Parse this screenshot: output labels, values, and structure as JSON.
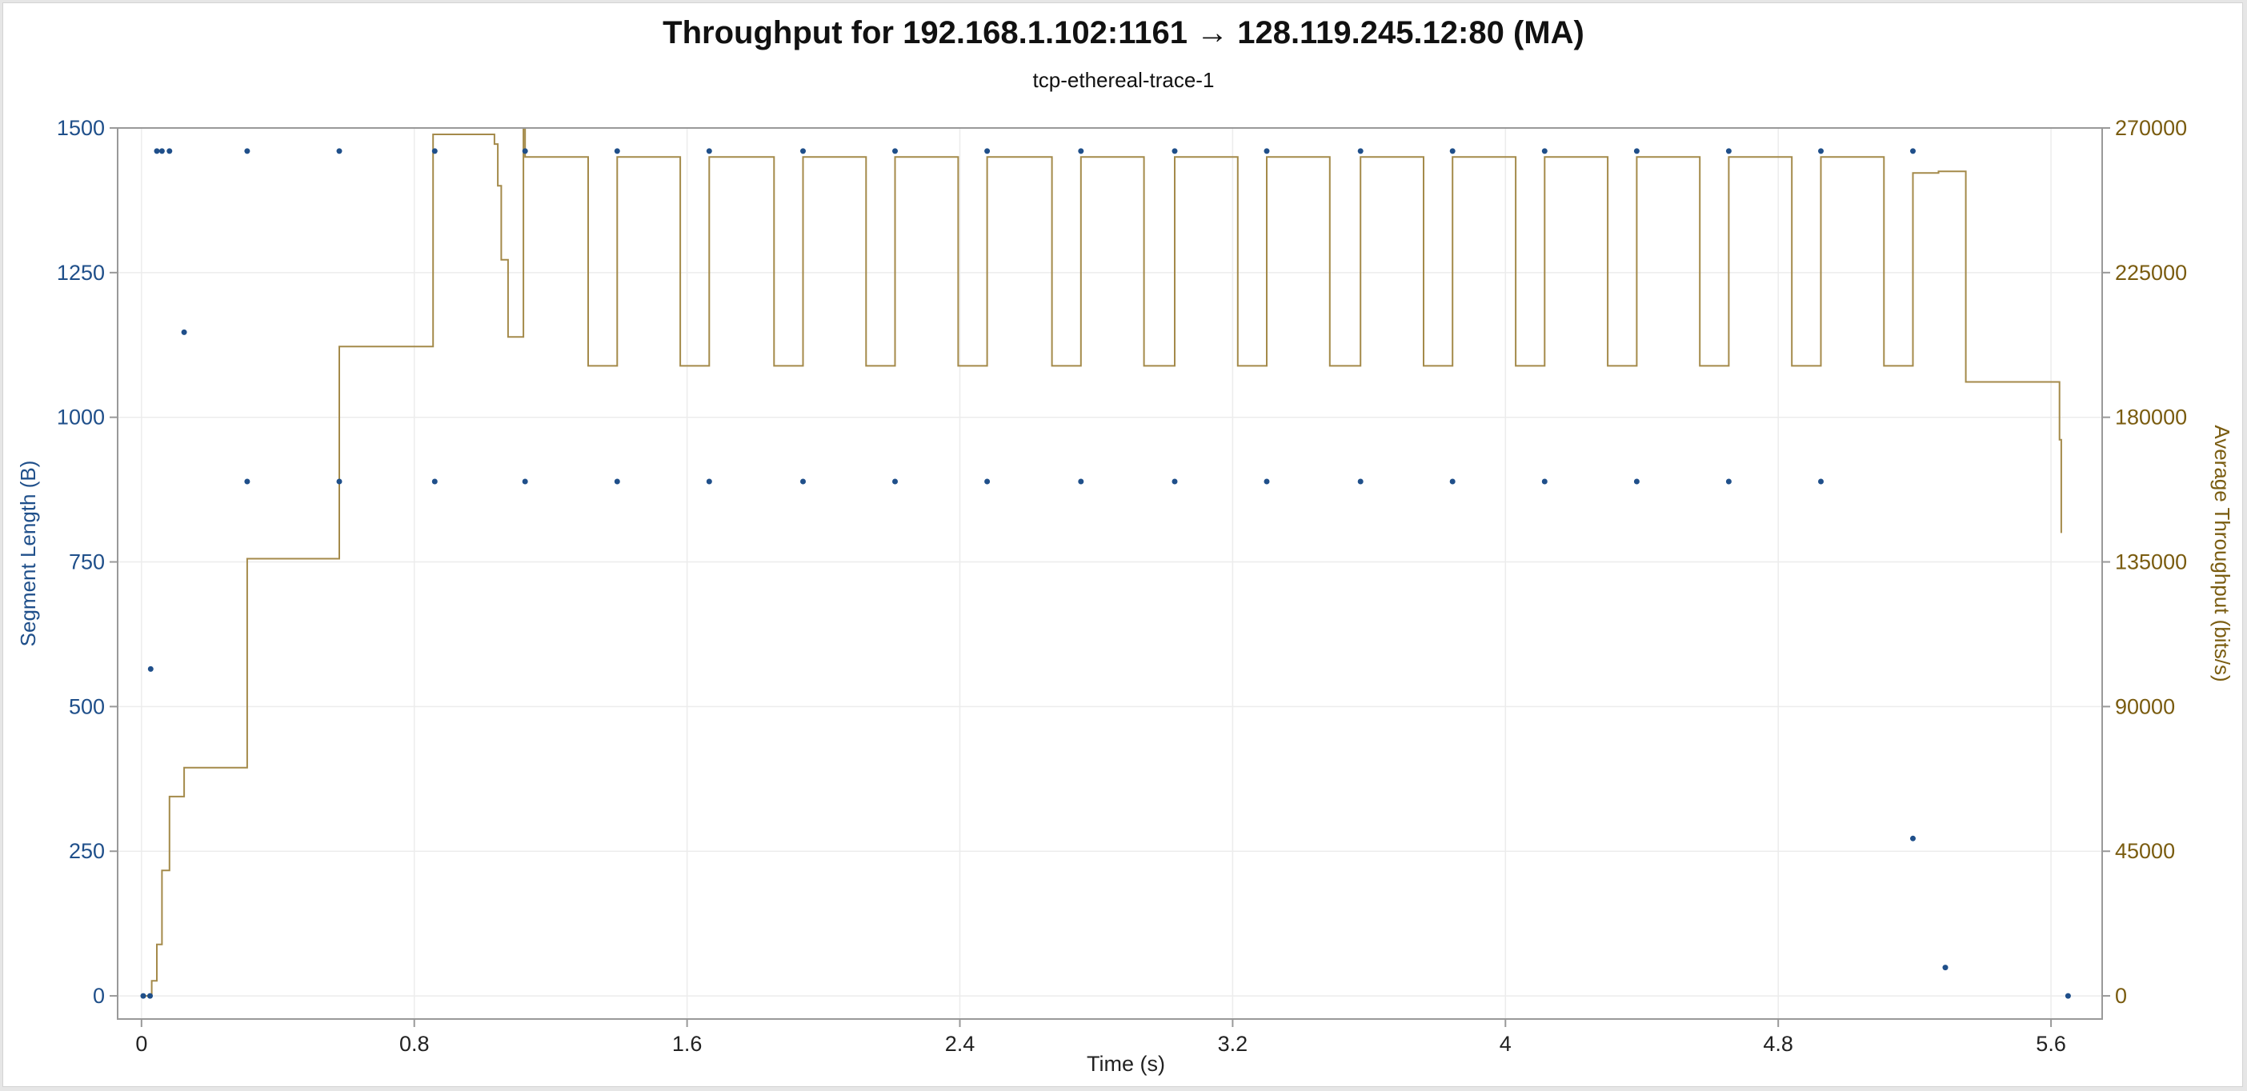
{
  "chart_data": {
    "type": "scatter",
    "title": "Throughput for 192.168.1.102:1161 → 128.119.245.12:80 (MA)",
    "subtitle": "tcp-ethereal-trace-1",
    "xlabel": "Time (s)",
    "ylabel_left": "Segment Length (B)",
    "ylabel_right": "Average Throughput (bits/s)",
    "xlim": [
      -0.07,
      5.75
    ],
    "ylim_left": [
      -40,
      1500
    ],
    "ylim_right": [
      -7200,
      270000
    ],
    "xticks": [
      "0",
      "0.8",
      "1.6",
      "2.4",
      "3.2",
      "4",
      "4.8",
      "5.6"
    ],
    "yticks_left": [
      "0",
      "250",
      "500",
      "750",
      "1000",
      "1250",
      "1500"
    ],
    "yticks_right": [
      "0",
      "45000",
      "90000",
      "135000",
      "180000",
      "225000",
      "270000"
    ],
    "grid": true,
    "colors": {
      "segments": "#1f4f8a",
      "throughput": "#a48a4a",
      "right_axis": "#7a5c10"
    },
    "series": [
      {
        "name": "Segment Length (B)",
        "axis": "left",
        "points": [
          [
            0.005,
            0
          ],
          [
            0.025,
            0
          ],
          [
            0.027,
            565
          ],
          [
            0.045,
            1460
          ],
          [
            0.06,
            1460
          ],
          [
            0.082,
            1460
          ],
          [
            0.125,
            1147
          ],
          [
            0.31,
            1460
          ],
          [
            0.31,
            889
          ],
          [
            0.58,
            1460
          ],
          [
            0.58,
            889
          ],
          [
            0.86,
            1460
          ],
          [
            0.86,
            889
          ],
          [
            1.125,
            1460
          ],
          [
            1.125,
            889
          ],
          [
            1.395,
            1460
          ],
          [
            1.395,
            889
          ],
          [
            1.665,
            1460
          ],
          [
            1.665,
            889
          ],
          [
            1.94,
            1460
          ],
          [
            1.94,
            889
          ],
          [
            2.21,
            1460
          ],
          [
            2.21,
            889
          ],
          [
            2.48,
            1460
          ],
          [
            2.48,
            889
          ],
          [
            2.755,
            1460
          ],
          [
            2.755,
            889
          ],
          [
            3.03,
            1460
          ],
          [
            3.03,
            889
          ],
          [
            3.3,
            1460
          ],
          [
            3.3,
            889
          ],
          [
            3.575,
            1460
          ],
          [
            3.575,
            889
          ],
          [
            3.845,
            1460
          ],
          [
            3.845,
            889
          ],
          [
            4.115,
            1460
          ],
          [
            4.115,
            889
          ],
          [
            4.385,
            1460
          ],
          [
            4.385,
            889
          ],
          [
            4.655,
            1460
          ],
          [
            4.655,
            889
          ],
          [
            4.925,
            1460
          ],
          [
            4.925,
            889
          ],
          [
            5.195,
            1460
          ],
          [
            5.195,
            272
          ],
          [
            5.29,
            49
          ],
          [
            5.65,
            0
          ]
        ]
      },
      {
        "name": "Average Throughput (bits/s)",
        "axis": "right",
        "step": true,
        "points": [
          [
            0.005,
            0
          ],
          [
            0.03,
            4700
          ],
          [
            0.045,
            16000
          ],
          [
            0.06,
            39000
          ],
          [
            0.082,
            62000
          ],
          [
            0.125,
            71000
          ],
          [
            0.31,
            136000
          ],
          [
            0.58,
            202000
          ],
          [
            0.855,
            268000
          ],
          [
            1.035,
            265000
          ],
          [
            1.045,
            252000
          ],
          [
            1.055,
            229000
          ],
          [
            1.075,
            205000
          ],
          [
            1.11,
            205000
          ],
          [
            1.12,
            270000
          ],
          [
            1.125,
            261000
          ],
          [
            1.31,
            196000
          ],
          [
            1.395,
            261000
          ],
          [
            1.58,
            196000
          ],
          [
            1.665,
            261000
          ],
          [
            1.855,
            196000
          ],
          [
            1.94,
            261000
          ],
          [
            2.125,
            196000
          ],
          [
            2.21,
            261000
          ],
          [
            2.395,
            196000
          ],
          [
            2.48,
            261000
          ],
          [
            2.67,
            196000
          ],
          [
            2.755,
            261000
          ],
          [
            2.94,
            196000
          ],
          [
            3.03,
            261000
          ],
          [
            3.215,
            196000
          ],
          [
            3.3,
            261000
          ],
          [
            3.485,
            196000
          ],
          [
            3.575,
            261000
          ],
          [
            3.76,
            196000
          ],
          [
            3.845,
            261000
          ],
          [
            4.03,
            196000
          ],
          [
            4.115,
            261000
          ],
          [
            4.3,
            196000
          ],
          [
            4.385,
            261000
          ],
          [
            4.57,
            196000
          ],
          [
            4.655,
            261000
          ],
          [
            4.84,
            196000
          ],
          [
            4.925,
            261000
          ],
          [
            5.11,
            196000
          ],
          [
            5.195,
            256000
          ],
          [
            5.27,
            256500
          ],
          [
            5.35,
            191000
          ],
          [
            5.62,
            191000
          ],
          [
            5.625,
            173000
          ],
          [
            5.63,
            144000
          ]
        ]
      }
    ]
  }
}
